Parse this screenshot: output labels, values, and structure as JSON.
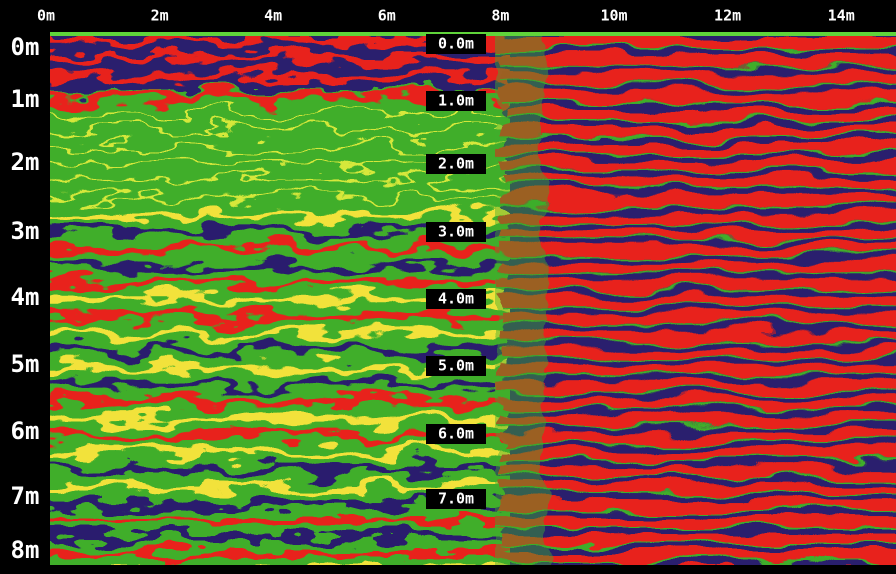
{
  "x_axis": {
    "labels": [
      "0m",
      "2m",
      "4m",
      "6m",
      "8m",
      "10m",
      "12m",
      "14m"
    ]
  },
  "y_axis": {
    "labels": [
      "0m",
      "1m",
      "2m",
      "3m",
      "4m",
      "5m",
      "6m",
      "7m",
      "8m"
    ]
  },
  "depth_markers": [
    "0.0m",
    "1.0m",
    "2.0m",
    "3.0m",
    "4.0m",
    "5.0m",
    "6.0m",
    "7.0m"
  ]
}
